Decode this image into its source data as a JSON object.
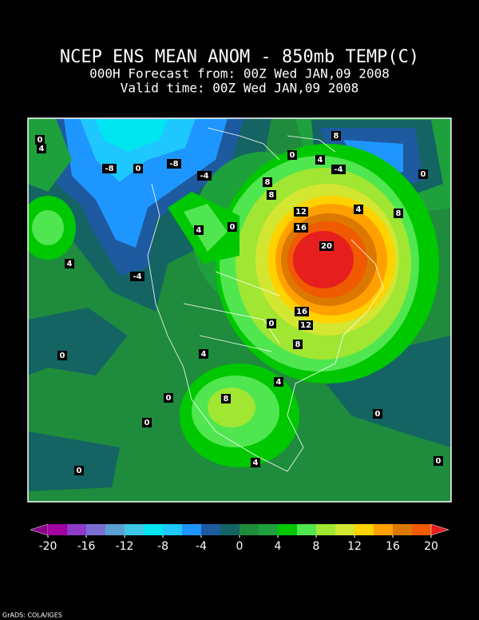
{
  "title": "NCEP ENS MEAN ANOM - 850mb TEMP(C)",
  "subtitle_forecast": "000H Forecast from: 00Z Wed JAN,09 2008",
  "subtitle_valid": "Valid time: 00Z Wed JAN,09 2008",
  "map": {
    "contour_labels": [
      "0",
      "4",
      "-8",
      "0",
      "-8",
      "-4",
      "8",
      "8",
      "0",
      "8",
      "4",
      "-4",
      "0",
      "4",
      "8",
      "12",
      "16",
      "20",
      "4",
      "0",
      "4",
      "-4",
      "16",
      "12",
      "0",
      "8",
      "4",
      "0",
      "4",
      "8",
      "0",
      "0",
      "0",
      "4",
      "0",
      "0"
    ]
  },
  "colorbar": {
    "ticks": [
      -20,
      -16,
      -12,
      -8,
      -4,
      0,
      4,
      8,
      12,
      16,
      20
    ],
    "colors": [
      "#8c008c",
      "#a000a0",
      "#8c3cc8",
      "#7a6ed2",
      "#5aa0d2",
      "#3cc8e6",
      "#00e6f0",
      "#1ec8ff",
      "#1e96ff",
      "#1e5aa0",
      "#146464",
      "#1e8c3c",
      "#1ea03c",
      "#00c800",
      "#50e650",
      "#a0e632",
      "#d2e632",
      "#ffd200",
      "#ffa000",
      "#dc7800",
      "#f05a00",
      "#e61e1e"
    ]
  },
  "footer": "GrADS: COLA/IGES"
}
